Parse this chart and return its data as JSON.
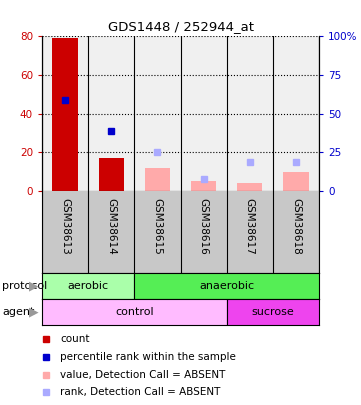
{
  "title": "GDS1448 / 252944_at",
  "samples": [
    "GSM38613",
    "GSM38614",
    "GSM38615",
    "GSM38616",
    "GSM38617",
    "GSM38618"
  ],
  "count_values": [
    79,
    17,
    0,
    0,
    0,
    0
  ],
  "rank_values": [
    47,
    31,
    0,
    0,
    0,
    0
  ],
  "absent_value_values": [
    0,
    0,
    12,
    5,
    4,
    10
  ],
  "absent_rank_values": [
    0,
    0,
    20,
    6,
    15,
    15
  ],
  "ylim_left": [
    0,
    80
  ],
  "ylim_right": [
    0,
    100
  ],
  "yticks_left": [
    0,
    20,
    40,
    60,
    80
  ],
  "yticks_right": [
    0,
    25,
    50,
    75,
    100
  ],
  "ytick_labels_right": [
    "0",
    "25",
    "50",
    "75",
    "100%"
  ],
  "ytick_labels_left": [
    "0",
    "20",
    "40",
    "60",
    "80"
  ],
  "color_count": "#cc0000",
  "color_rank": "#0000cc",
  "color_absent_value": "#ffaaaa",
  "color_absent_rank": "#aaaaff",
  "bg_plot": "#f0f0f0",
  "bg_sample_labels": "#c8c8c8",
  "protocol_aerobic_color": "#aaffaa",
  "protocol_anaerobic_color": "#55ee55",
  "agent_control_color": "#ffbbff",
  "agent_sucrose_color": "#ee44ee",
  "aerobic_cols": [
    0,
    1
  ],
  "anaerobic_cols": [
    2,
    3,
    4,
    5
  ],
  "control_cols": [
    0,
    1,
    2,
    3
  ],
  "sucrose_cols": [
    4,
    5
  ],
  "legend_items": [
    {
      "color": "#cc0000",
      "label": "count"
    },
    {
      "color": "#0000cc",
      "label": "percentile rank within the sample"
    },
    {
      "color": "#ffaaaa",
      "label": "value, Detection Call = ABSENT"
    },
    {
      "color": "#aaaaff",
      "label": "rank, Detection Call = ABSENT"
    }
  ]
}
